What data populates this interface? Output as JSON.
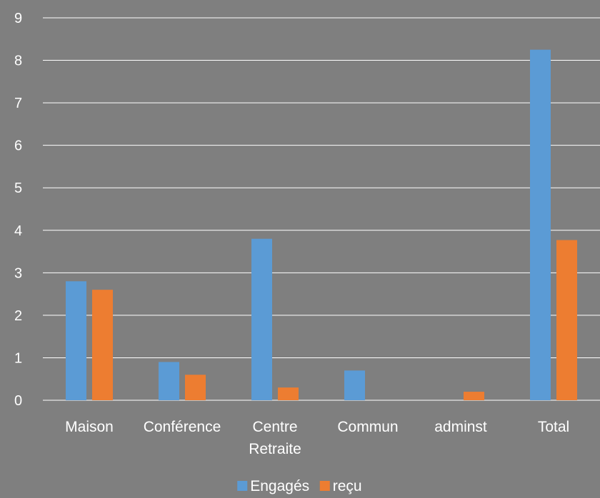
{
  "chart_data": {
    "type": "bar",
    "categories": [
      [
        "Maison"
      ],
      [
        "Conférence"
      ],
      [
        "Centre",
        "Retraite"
      ],
      [
        "Commun"
      ],
      [
        "adminst"
      ],
      [
        "Total"
      ]
    ],
    "series": [
      {
        "name": "Engagés",
        "color": "#5b9bd5",
        "values": [
          2.8,
          0.9,
          3.8,
          0.7,
          0,
          8.25
        ]
      },
      {
        "name": "reçu",
        "color": "#ed7d31",
        "values": [
          2.6,
          0.6,
          0.3,
          0,
          0.2,
          3.77
        ]
      }
    ],
    "yticks": [
      "0",
      "1",
      "2",
      "3",
      "4",
      "5",
      "6",
      "7",
      "8",
      "9"
    ],
    "ylim": [
      0,
      9
    ],
    "grid": true,
    "legend": "bottom-center"
  }
}
